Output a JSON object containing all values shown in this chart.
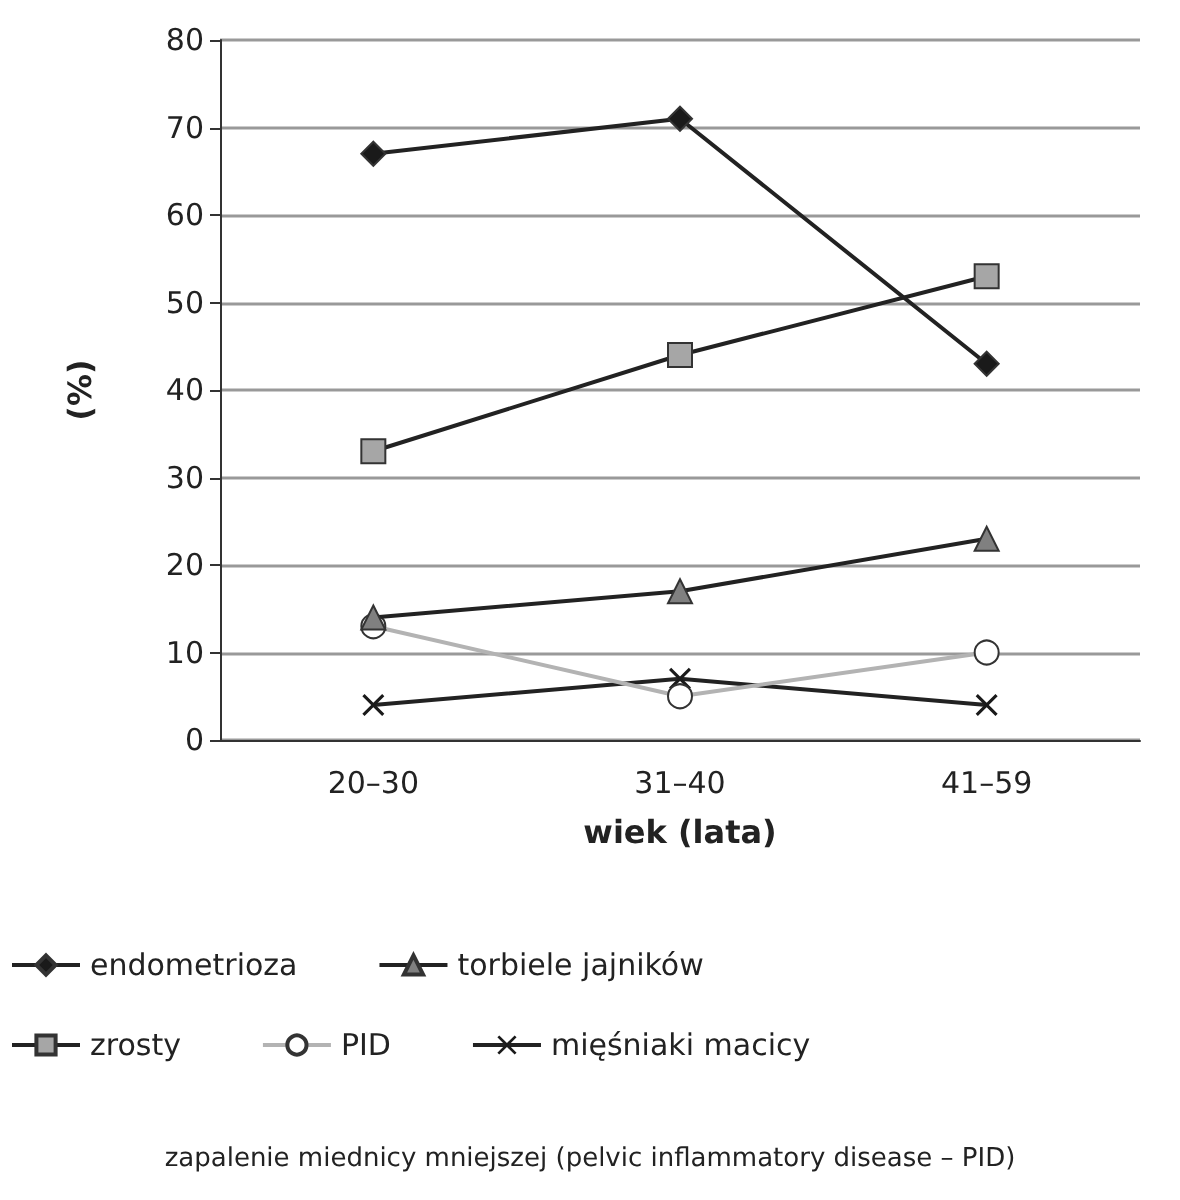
{
  "chart_data": {
    "type": "line",
    "xlabel": "wiek (lata)",
    "ylabel": "(%)",
    "categories": [
      "20–30",
      "31–40",
      "41–59"
    ],
    "series": [
      {
        "name": "endometrioza",
        "color": "#1a1a1a",
        "marker": "diamond",
        "values": [
          67,
          71,
          43
        ]
      },
      {
        "name": "torbiele jajników",
        "color": "#808080",
        "marker": "triangle",
        "values": [
          14,
          17,
          23
        ]
      },
      {
        "name": "zrosty",
        "color": "#a6a6a6",
        "marker": "square",
        "values": [
          33,
          44,
          53
        ]
      },
      {
        "name": "PID",
        "color": "#ffffff",
        "marker": "circle",
        "values": [
          13,
          5,
          10
        ]
      },
      {
        "name": "mięśniaki macicy",
        "color": "#1a1a1a",
        "marker": "cross",
        "values": [
          4,
          7,
          4
        ]
      }
    ],
    "ylim": [
      0,
      80
    ],
    "yticks": [
      0,
      10,
      20,
      30,
      40,
      50,
      60,
      70,
      80
    ],
    "grid": "y",
    "legend": "bottom",
    "annotations": [
      "zapalenie miednicy mniejszej (pelvic inflammatory disease – PID)"
    ]
  }
}
